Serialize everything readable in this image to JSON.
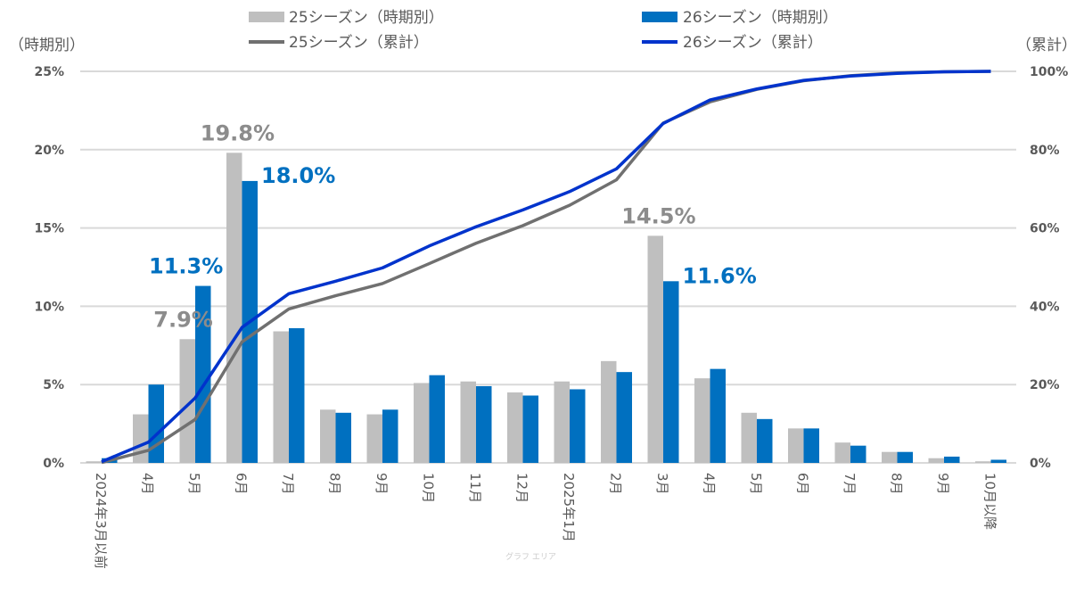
{
  "chart_data": {
    "type": "bar+line",
    "title": "",
    "ylabel_left": "（時期別）",
    "ylabel_right": "（累計）",
    "ylim_left": [
      0,
      25
    ],
    "ylim_right": [
      0,
      100
    ],
    "yticks_left": [
      "0%",
      "5%",
      "10%",
      "15%",
      "20%",
      "25%"
    ],
    "yticks_right": [
      "0%",
      "20%",
      "40%",
      "60%",
      "80%",
      "100%"
    ],
    "grid": true,
    "legend_position": "top",
    "categories": [
      "2024年3月以前",
      "4月",
      "5月",
      "6月",
      "7月",
      "8月",
      "9月",
      "10月",
      "11月",
      "12月",
      "2025年1月",
      "2月",
      "3月",
      "4月",
      "5月",
      "6月",
      "7月",
      "8月",
      "9月",
      "10月以降"
    ],
    "series": [
      {
        "name": "25シーズン（時期別）",
        "type": "bar",
        "axis": "left",
        "color": "#bfbfbf",
        "values": [
          0.1,
          3.1,
          7.9,
          19.8,
          8.4,
          3.4,
          3.1,
          5.1,
          5.2,
          4.5,
          5.2,
          6.5,
          14.5,
          5.4,
          3.2,
          2.2,
          1.3,
          0.7,
          0.3,
          0.1
        ]
      },
      {
        "name": "26シーズン（時期別）",
        "type": "bar",
        "axis": "left",
        "color": "#0070c0",
        "values": [
          0.3,
          5.0,
          11.3,
          18.0,
          8.6,
          3.2,
          3.4,
          5.6,
          4.9,
          4.3,
          4.7,
          5.8,
          11.6,
          6.0,
          2.8,
          2.2,
          1.1,
          0.7,
          0.4,
          0.2
        ]
      },
      {
        "name": "25シーズン（累計）",
        "type": "line",
        "axis": "right",
        "color": "#707070",
        "values": [
          0.1,
          3.2,
          11.1,
          30.9,
          39.3,
          42.7,
          45.8,
          50.9,
          56.1,
          60.6,
          65.8,
          72.3,
          86.8,
          92.2,
          95.4,
          97.6,
          98.9,
          99.6,
          99.9,
          100
        ]
      },
      {
        "name": "26シーズン（累計）",
        "type": "line",
        "axis": "right",
        "color": "#0033cc",
        "values": [
          0.3,
          5.3,
          16.6,
          34.6,
          43.2,
          46.4,
          49.8,
          55.4,
          60.3,
          64.6,
          69.3,
          75.1,
          86.7,
          92.7,
          95.5,
          97.7,
          98.8,
          99.5,
          99.9,
          100
        ]
      }
    ],
    "data_labels": [
      {
        "series": 0,
        "category": 2,
        "text": "7.9%",
        "color": "#8c8c8c"
      },
      {
        "series": 0,
        "category": 3,
        "text": "19.8%",
        "color": "#8c8c8c"
      },
      {
        "series": 0,
        "category": 12,
        "text": "14.5%",
        "color": "#8c8c8c"
      },
      {
        "series": 1,
        "category": 2,
        "text": "11.3%",
        "color": "#0070c0"
      },
      {
        "series": 1,
        "category": 3,
        "text": "18.0%",
        "color": "#0070c0"
      },
      {
        "series": 1,
        "category": 12,
        "text": "11.6%",
        "color": "#0070c0"
      }
    ],
    "tooltip": "グラフ エリア"
  }
}
